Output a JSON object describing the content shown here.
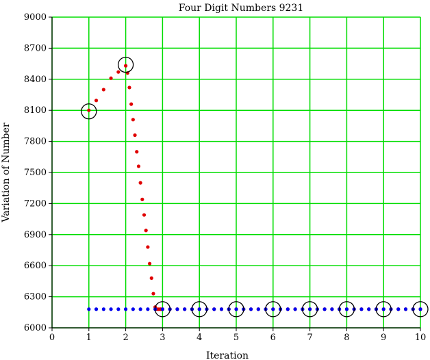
{
  "chart_data": {
    "type": "scatter",
    "title": "Four Digit Numbers  9231",
    "xlabel": "Iteration",
    "ylabel": "Variation of Number",
    "xlim": [
      0,
      10
    ],
    "ylim": [
      6000,
      9000
    ],
    "x_ticks": [
      0,
      1,
      2,
      3,
      4,
      5,
      6,
      7,
      8,
      9,
      10
    ],
    "y_ticks": [
      6000,
      6300,
      6600,
      6900,
      7200,
      7500,
      7800,
      8100,
      8400,
      8700,
      9000
    ],
    "grid": true,
    "grid_color": "#00dd00",
    "series": [
      {
        "color": "#e00000",
        "marker": "dot",
        "x": [
          1,
          1.2,
          1.4,
          1.6,
          1.8,
          2,
          2.05,
          2.1,
          2.15,
          2.2,
          2.25,
          2.3,
          2.35,
          2.4,
          2.45,
          2.5,
          2.55,
          2.6,
          2.65,
          2.7,
          2.75,
          2.8,
          2.85,
          2.9,
          2.95,
          3,
          3.2,
          3.4,
          3.6,
          3.8,
          4,
          4.2,
          4.4,
          4.6,
          4.8,
          5,
          5.2,
          5.4,
          5.6,
          5.8,
          6,
          6.2,
          6.4,
          6.6,
          6.8,
          7,
          7.2,
          7.4,
          7.6,
          7.8,
          8,
          8.2,
          8.4,
          8.6,
          8.8,
          9,
          9.2,
          9.4,
          9.6,
          9.8,
          10
        ],
        "y": [
          8100,
          8195,
          8300,
          8410,
          8470,
          8530,
          8460,
          8320,
          8160,
          8010,
          7860,
          7700,
          7560,
          7400,
          7240,
          7090,
          6940,
          6780,
          6620,
          6480,
          6330,
          6200,
          6180,
          6180,
          6180,
          6180,
          6180,
          6180,
          6180,
          6180,
          6180,
          6180,
          6180,
          6180,
          6180,
          6180,
          6180,
          6180,
          6180,
          6180,
          6180,
          6180,
          6180,
          6180,
          6180,
          6180,
          6180,
          6180,
          6180,
          6180,
          6180,
          6180,
          6180,
          6180,
          6180,
          6180,
          6180,
          6180,
          6180,
          6180,
          6180
        ]
      },
      {
        "color": "#0000ee",
        "marker": "dot",
        "x": [
          1,
          1.2,
          1.4,
          1.6,
          1.8,
          2,
          2.2,
          2.4,
          2.6,
          2.8,
          3,
          3.2,
          3.4,
          3.6,
          3.8,
          4,
          4.2,
          4.4,
          4.6,
          4.8,
          5,
          5.2,
          5.4,
          5.6,
          5.8,
          6,
          6.2,
          6.4,
          6.6,
          6.8,
          7,
          7.2,
          7.4,
          7.6,
          7.8,
          8,
          8.2,
          8.4,
          8.6,
          8.8,
          9,
          9.2,
          9.4,
          9.6,
          9.8,
          10
        ],
        "y": [
          6180,
          6180,
          6180,
          6180,
          6180,
          6180,
          6180,
          6180,
          6180,
          6180,
          6180,
          6180,
          6180,
          6180,
          6180,
          6180,
          6180,
          6180,
          6180,
          6180,
          6180,
          6180,
          6180,
          6180,
          6180,
          6180,
          6180,
          6180,
          6180,
          6180,
          6180,
          6180,
          6180,
          6180,
          6180,
          6180,
          6180,
          6180,
          6180,
          6180,
          6180,
          6180,
          6180,
          6180,
          6180,
          6180
        ]
      },
      {
        "color": "#000000",
        "marker": "open-circle",
        "x": [
          1,
          2,
          3,
          4,
          5,
          6,
          7,
          8,
          9,
          10
        ],
        "y": [
          8090,
          8540,
          6180,
          6180,
          6180,
          6180,
          6180,
          6180,
          6180,
          6180
        ]
      }
    ]
  }
}
